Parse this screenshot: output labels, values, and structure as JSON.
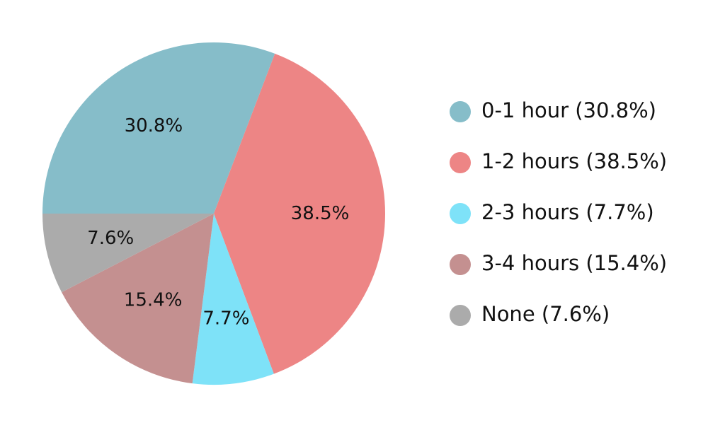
{
  "chart_data": {
    "type": "pie",
    "categories": [
      "0-1 hour",
      "1-2 hours",
      "2-3 hours",
      "3-4 hours",
      "None"
    ],
    "values": [
      30.8,
      38.5,
      7.7,
      15.4,
      7.6
    ],
    "slice_labels": [
      "30.8%",
      "38.5%",
      "7.7%",
      "15.4%",
      "7.6%"
    ],
    "legend_labels": [
      "0-1 hour (30.8%)",
      "1-2 hours (38.5%)",
      "2-3 hours (7.7%)",
      "3-4 hours (15.4%)",
      "None (7.6%)"
    ],
    "colors": [
      "#86bdc9",
      "#ed8585",
      "#7ee2f8",
      "#c49090",
      "#ababab"
    ],
    "legend_position": "right",
    "title": "",
    "start_angle_deg": 180,
    "direction": "clockwise"
  }
}
